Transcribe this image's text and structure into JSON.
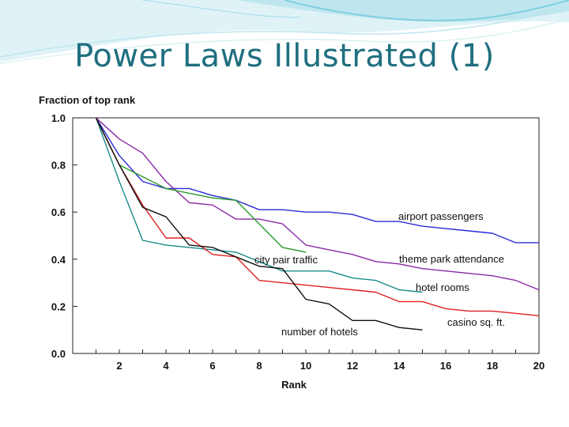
{
  "slide": {
    "title": "Power Laws Illustrated (1)"
  },
  "colors": {
    "title": "#1f6f7f",
    "decor_light": "#bfe6ee",
    "decor_mid": "#7fcfdf"
  },
  "chart_data": {
    "type": "line",
    "ylabel": "Fraction of top rank",
    "xlabel": "Rank",
    "xlim": [
      0,
      20
    ],
    "ylim": [
      0,
      1.0
    ],
    "xticks": [
      2,
      4,
      6,
      8,
      10,
      12,
      14,
      16,
      18,
      20
    ],
    "yticks": [
      "0.0",
      "0.2",
      "0.4",
      "0.6",
      "0.8",
      "1.0"
    ],
    "yticks_values": [
      0.0,
      0.2,
      0.4,
      0.6,
      0.8,
      1.0
    ],
    "grid": false,
    "legend": "inline labels",
    "series": [
      {
        "name": "airport passengers",
        "color": "#2a2ad6",
        "x": [
          1,
          2,
          3,
          4,
          5,
          6,
          7,
          8,
          9,
          10,
          11,
          12,
          13,
          14,
          15,
          16,
          17,
          18,
          19,
          20
        ],
        "values": [
          1.0,
          0.84,
          0.73,
          0.7,
          0.7,
          0.67,
          0.65,
          0.61,
          0.61,
          0.6,
          0.6,
          0.59,
          0.56,
          0.56,
          0.54,
          0.53,
          0.52,
          0.51,
          0.47,
          0.47
        ]
      },
      {
        "name": "theme park attendance",
        "color": "#8a2aa6",
        "x": [
          1,
          2,
          3,
          4,
          5,
          6,
          7,
          8,
          9,
          10,
          11,
          12,
          13,
          14,
          15,
          16,
          17,
          18,
          19,
          20
        ],
        "values": [
          1.0,
          0.91,
          0.85,
          0.73,
          0.64,
          0.63,
          0.57,
          0.57,
          0.55,
          0.46,
          0.44,
          0.42,
          0.39,
          0.38,
          0.36,
          0.35,
          0.34,
          0.33,
          0.31,
          0.27
        ]
      },
      {
        "name": "city pair traffic",
        "color": "#2a9a2a",
        "x": [
          1,
          2,
          3,
          4,
          5,
          6,
          7,
          8,
          9,
          10
        ],
        "values": [
          1.0,
          0.8,
          0.75,
          0.7,
          0.68,
          0.66,
          0.65,
          0.55,
          0.45,
          0.43
        ]
      },
      {
        "name": "hotel rooms",
        "color": "#1a8a8a",
        "x": [
          1,
          2,
          3,
          4,
          5,
          6,
          7,
          8,
          9,
          10,
          11,
          12,
          13,
          14,
          15
        ],
        "values": [
          1.0,
          0.73,
          0.48,
          0.46,
          0.45,
          0.44,
          0.43,
          0.39,
          0.35,
          0.35,
          0.35,
          0.32,
          0.31,
          0.27,
          0.26
        ]
      },
      {
        "name": "casino sq. ft.",
        "color": "#e02020",
        "x": [
          1,
          2,
          3,
          4,
          5,
          6,
          7,
          8,
          9,
          10,
          11,
          12,
          13,
          14,
          15,
          16,
          17,
          18,
          19,
          20
        ],
        "values": [
          1.0,
          0.8,
          0.63,
          0.49,
          0.49,
          0.42,
          0.41,
          0.31,
          0.3,
          0.29,
          0.28,
          0.27,
          0.26,
          0.22,
          0.22,
          0.19,
          0.18,
          0.18,
          0.17,
          0.16
        ]
      },
      {
        "name": "number of hotels",
        "color": "#111111",
        "x": [
          1,
          2,
          3,
          4,
          5,
          6,
          7,
          8,
          9,
          10,
          11,
          12,
          13,
          14,
          15
        ],
        "values": [
          1.0,
          0.8,
          0.62,
          0.58,
          0.46,
          0.45,
          0.41,
          0.37,
          0.36,
          0.23,
          0.21,
          0.14,
          0.14,
          0.11,
          0.1
        ]
      }
    ]
  }
}
